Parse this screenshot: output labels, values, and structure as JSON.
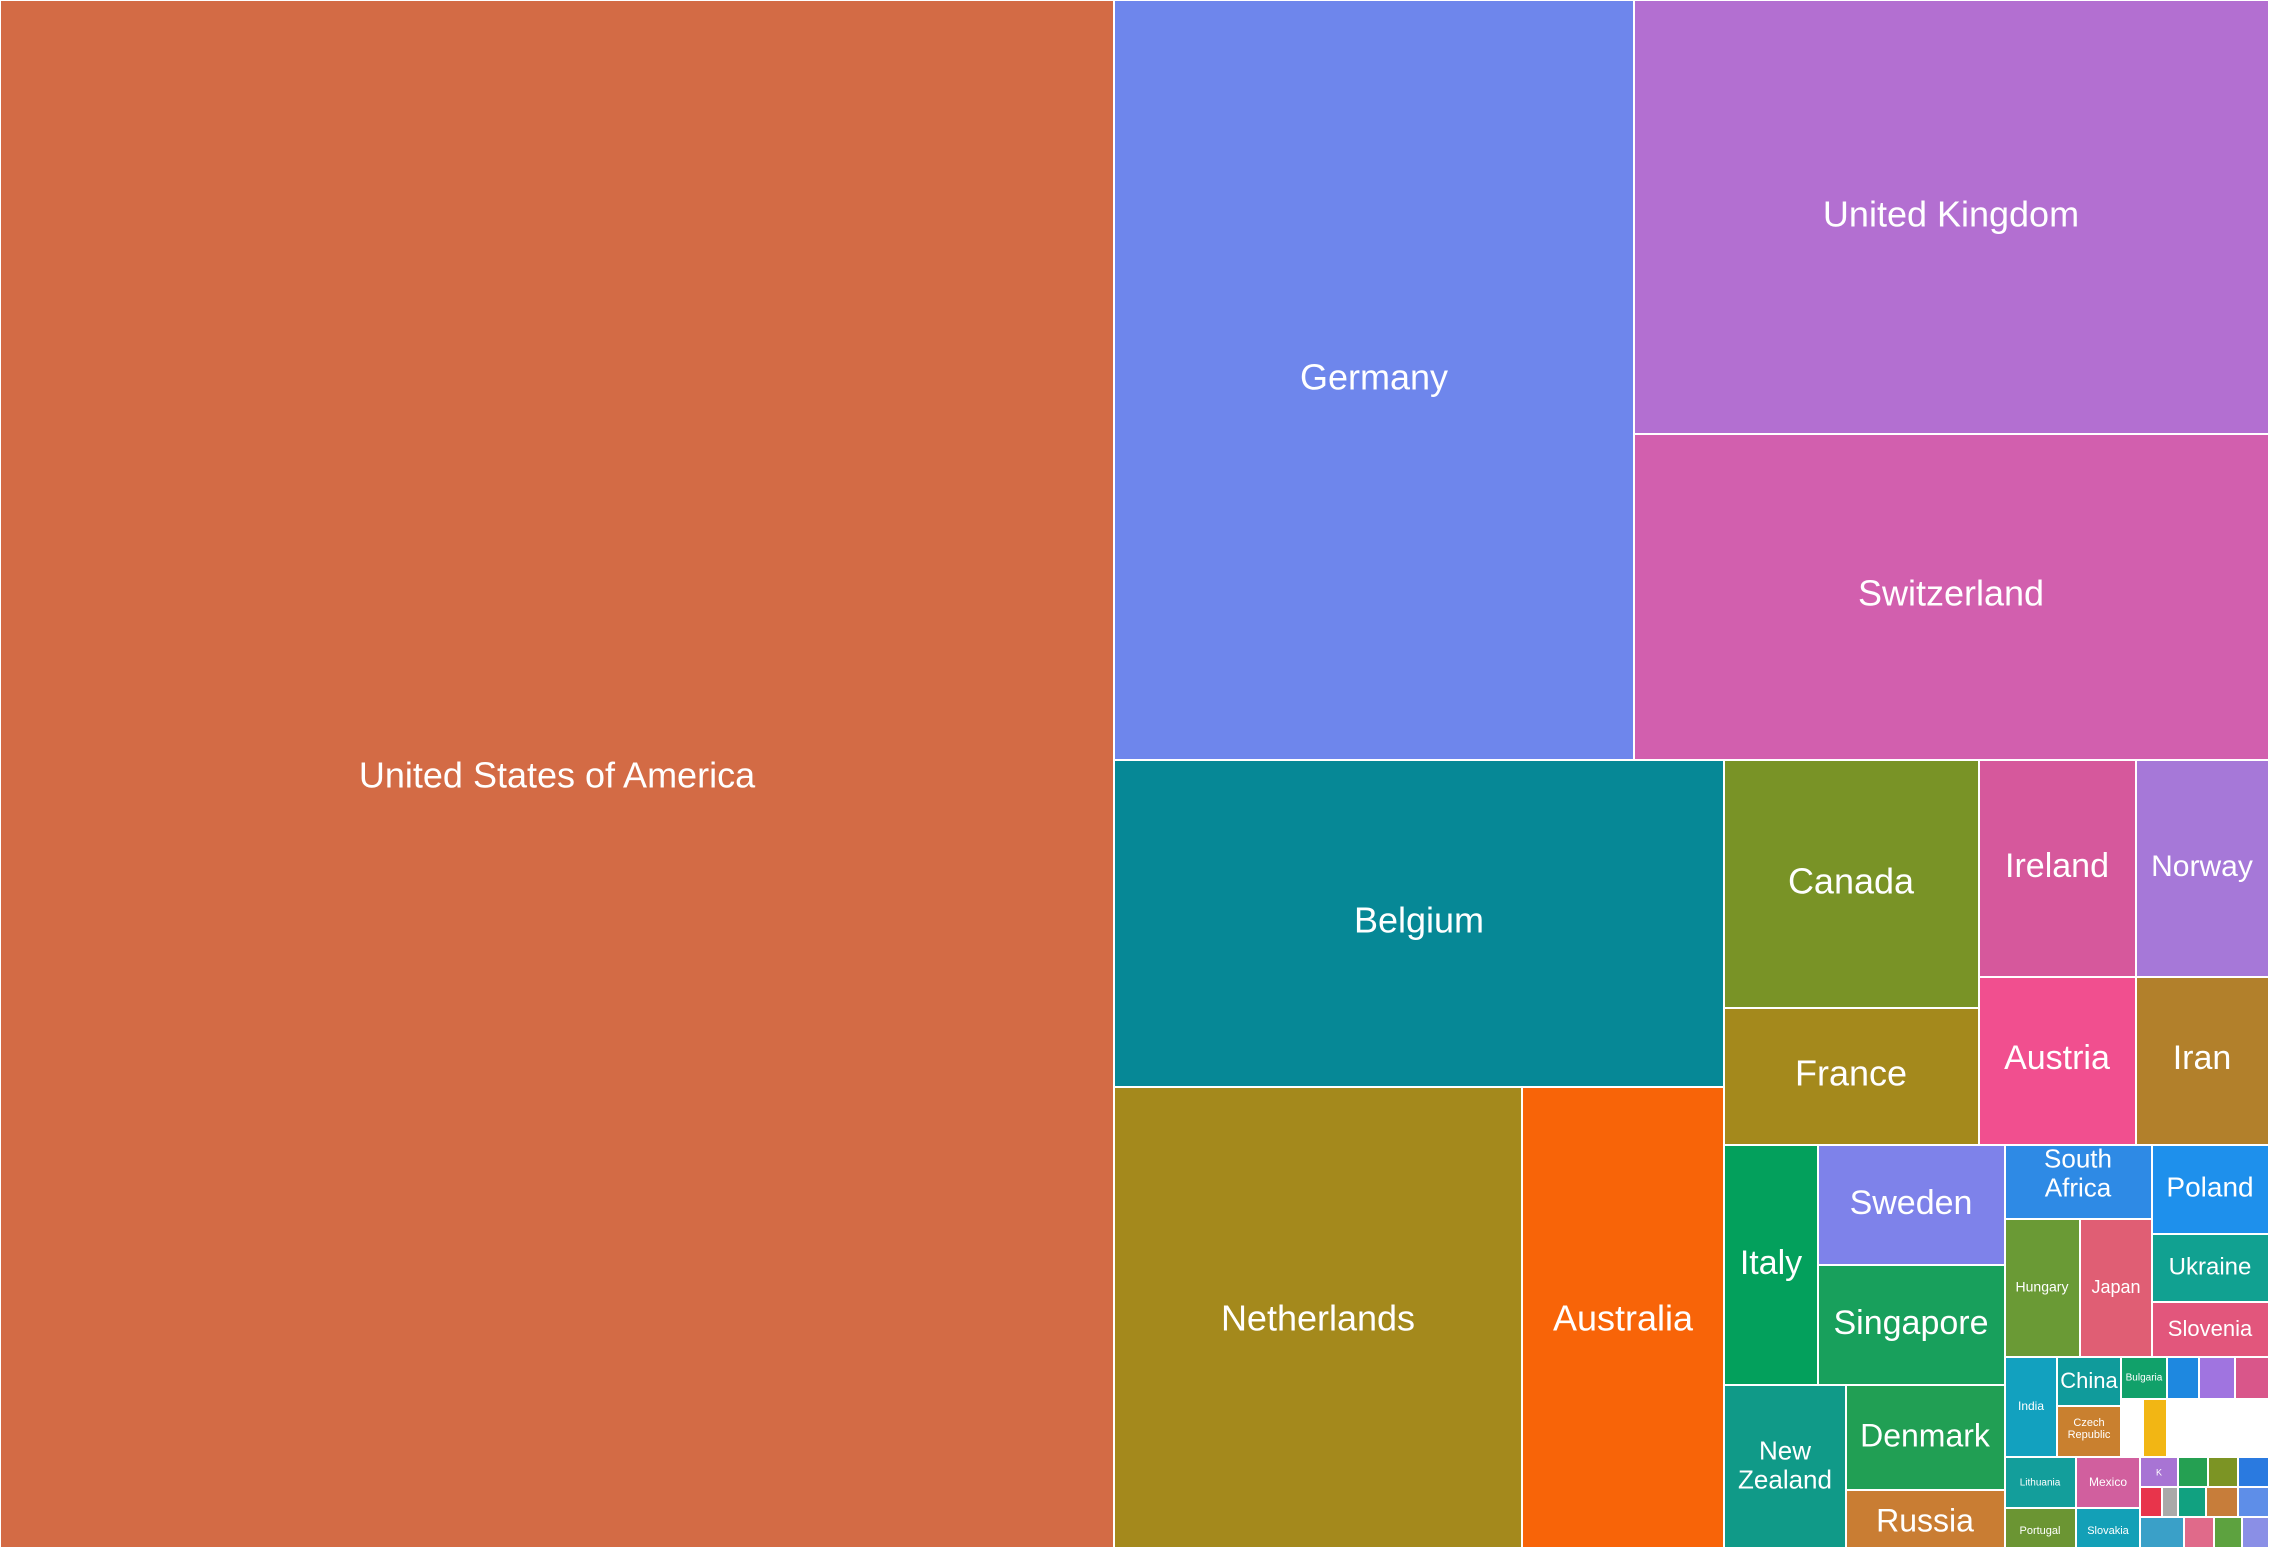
{
  "chart_data": {
    "type": "treemap",
    "title": "",
    "labeled_cells": [
      {
        "label": "United States of America",
        "color": "#d36b45"
      },
      {
        "label": "Germany",
        "color": "#6e86ec"
      },
      {
        "label": "United Kingdom",
        "color": "#b36fd1"
      },
      {
        "label": "Switzerland",
        "color": "#d25fae"
      },
      {
        "label": "Belgium",
        "color": "#068896"
      },
      {
        "label": "Netherlands",
        "color": "#a4891c"
      },
      {
        "label": "Australia",
        "color": "#f86408"
      },
      {
        "label": "Canada",
        "color": "#799326"
      },
      {
        "label": "France",
        "color": "#a4891c"
      },
      {
        "label": "Ireland",
        "color": "#d6589c"
      },
      {
        "label": "Norway",
        "color": "#a678d8"
      },
      {
        "label": "Austria",
        "color": "#f14f8f"
      },
      {
        "label": "Iran",
        "color": "#b2802b"
      },
      {
        "label": "Italy",
        "color": "#03a05c"
      },
      {
        "label": "Sweden",
        "color": "#7e82ea"
      },
      {
        "label": "Singapore",
        "color": "#18a05c"
      },
      {
        "label": "New Zealand",
        "color": "#109a88"
      },
      {
        "label": "Denmark",
        "color": "#219f54"
      },
      {
        "label": "Russia",
        "color": "#c97d33"
      },
      {
        "label": "South Africa",
        "color": "#2e8ae5"
      },
      {
        "label": "Poland",
        "color": "#1e90ec"
      },
      {
        "label": "Hungary",
        "color": "#6a9a35"
      },
      {
        "label": "Japan",
        "color": "#e05e74"
      },
      {
        "label": "Ukraine",
        "color": "#11a191"
      },
      {
        "label": "Slovenia",
        "color": "#e2567c"
      },
      {
        "label": "India",
        "color": "#12a1bf"
      },
      {
        "label": "China",
        "color": "#109b9b"
      },
      {
        "label": "Czech Republic",
        "color": "#c9802f"
      },
      {
        "label": "Bulgaria",
        "color": "#11a16a"
      },
      {
        "label": "Lithuania",
        "color": "#139e9b"
      },
      {
        "label": "Mexico",
        "color": "#d15f9e"
      },
      {
        "label": "Portugal",
        "color": "#6b9533"
      },
      {
        "label": "Slovakia",
        "color": "#13a0b7"
      },
      {
        "label": "K",
        "color": "#a874d4"
      }
    ],
    "unlabeled_cell_colors": [
      "#f2b614",
      "#1e88e0",
      "#a074e0",
      "#d9568a",
      "#e8344b",
      "#a9a9a9",
      "#25a052",
      "#7c9424",
      "#2a7ae0",
      "#11a180",
      "#c77d3a",
      "#5e8ee8",
      "#3aa0c8",
      "#e06a8a",
      "#5da23f",
      "#8a8fe6"
    ]
  }
}
